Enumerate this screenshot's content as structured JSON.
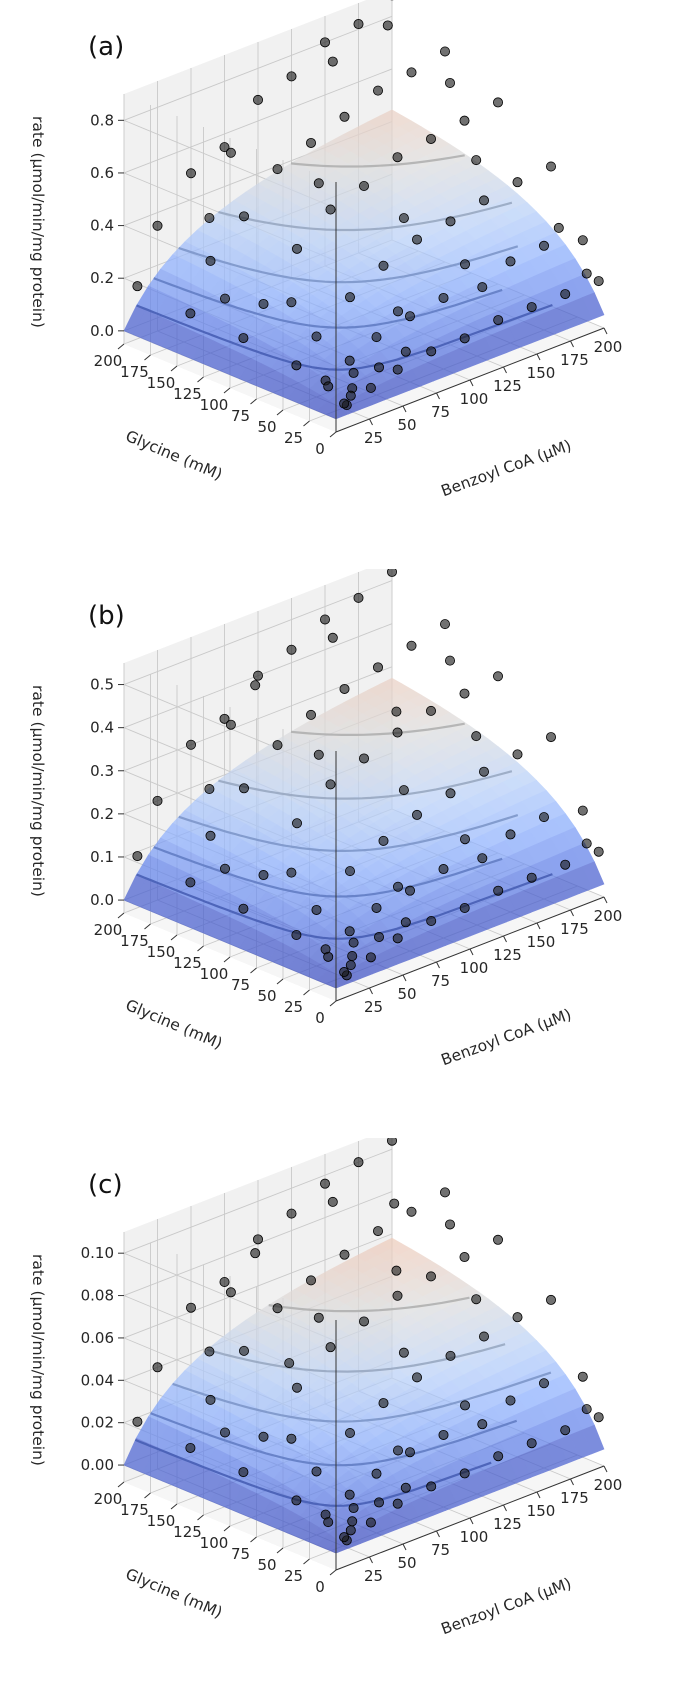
{
  "chart_data": [
    {
      "type": "surface3d-scatter",
      "panel_label": "(a)",
      "zlabel": "rate (μmol/min/mg protein)",
      "xlabel": "Benzoyl CoA (μM)",
      "ylabel": "Glycine (mM)",
      "x_ticks": [
        "25",
        "50",
        "75",
        "100",
        "125",
        "150",
        "175",
        "200"
      ],
      "y_ticks": [
        "0",
        "25",
        "50",
        "75",
        "100",
        "125",
        "150",
        "175",
        "200"
      ],
      "z_ticks": [
        "0.0",
        "0.2",
        "0.4",
        "0.6",
        "0.8"
      ],
      "xlim": [
        0,
        200
      ],
      "ylim": [
        0,
        200
      ],
      "zlim": [
        -0.05,
        0.9
      ],
      "z_tick_values": [
        0.0,
        0.2,
        0.4,
        0.6,
        0.8
      ],
      "surface": {
        "vmax": 0.78,
        "km_x": 60,
        "km_y": 70
      },
      "points": [
        [
          10,
          5,
          0.03
        ],
        [
          12,
          5,
          0.02
        ],
        [
          15,
          5,
          0.05
        ],
        [
          10,
          20,
          0.07
        ],
        [
          12,
          25,
          0.08
        ],
        [
          20,
          10,
          0.06
        ],
        [
          25,
          15,
          0.1
        ],
        [
          30,
          5,
          0.05
        ],
        [
          30,
          25,
          0.12
        ],
        [
          40,
          10,
          0.1
        ],
        [
          50,
          5,
          0.08
        ],
        [
          50,
          25,
          0.17
        ],
        [
          60,
          10,
          0.12
        ],
        [
          75,
          5,
          0.1
        ],
        [
          75,
          25,
          0.2
        ],
        [
          100,
          5,
          0.1
        ],
        [
          100,
          25,
          0.22
        ],
        [
          125,
          5,
          0.12
        ],
        [
          125,
          20,
          0.22
        ],
        [
          150,
          5,
          0.12
        ],
        [
          150,
          25,
          0.26
        ],
        [
          175,
          5,
          0.12
        ],
        [
          175,
          25,
          0.27
        ],
        [
          200,
          5,
          0.12
        ],
        [
          200,
          20,
          0.25
        ],
        [
          195,
          10,
          0.15
        ],
        [
          190,
          30,
          0.3
        ],
        [
          10,
          50,
          0.1
        ],
        [
          25,
          50,
          0.18
        ],
        [
          50,
          50,
          0.28
        ],
        [
          75,
          50,
          0.35
        ],
        [
          100,
          50,
          0.4
        ],
        [
          125,
          50,
          0.42
        ],
        [
          150,
          50,
          0.45
        ],
        [
          175,
          50,
          0.47
        ],
        [
          200,
          50,
          0.48
        ],
        [
          10,
          100,
          0.12
        ],
        [
          25,
          100,
          0.22
        ],
        [
          50,
          100,
          0.38
        ],
        [
          75,
          100,
          0.48
        ],
        [
          100,
          100,
          0.52
        ],
        [
          125,
          100,
          0.58
        ],
        [
          150,
          100,
          0.6
        ],
        [
          175,
          100,
          0.62
        ],
        [
          200,
          100,
          0.64
        ],
        [
          10,
          150,
          0.13
        ],
        [
          25,
          150,
          0.3
        ],
        [
          50,
          150,
          0.42
        ],
        [
          75,
          150,
          0.55
        ],
        [
          100,
          150,
          0.6
        ],
        [
          125,
          150,
          0.65
        ],
        [
          150,
          150,
          0.7
        ],
        [
          175,
          150,
          0.72
        ],
        [
          200,
          150,
          0.75
        ],
        [
          10,
          200,
          0.15
        ],
        [
          25,
          200,
          0.35
        ],
        [
          50,
          200,
          0.5
        ],
        [
          75,
          200,
          0.55
        ],
        [
          100,
          200,
          0.68
        ],
        [
          125,
          200,
          0.72
        ],
        [
          150,
          200,
          0.8
        ],
        [
          175,
          200,
          0.82
        ],
        [
          200,
          200,
          0.88
        ],
        [
          60,
          175,
          0.6
        ],
        [
          140,
          180,
          0.78
        ],
        [
          180,
          120,
          0.72
        ],
        [
          90,
          130,
          0.5
        ],
        [
          30,
          80,
          0.25
        ],
        [
          160,
          70,
          0.55
        ],
        [
          120,
          30,
          0.3
        ],
        [
          40,
          170,
          0.4
        ],
        [
          185,
          185,
          0.82
        ],
        [
          110,
          75,
          0.42
        ],
        [
          70,
          30,
          0.22
        ],
        [
          20,
          130,
          0.2
        ]
      ]
    },
    {
      "type": "surface3d-scatter",
      "panel_label": "(b)",
      "zlabel": "rate (μmol/min/mg protein)",
      "xlabel": "Benzoyl CoA (μM)",
      "ylabel": "Glycine (mM)",
      "x_ticks": [
        "25",
        "50",
        "75",
        "100",
        "125",
        "150",
        "175",
        "200"
      ],
      "y_ticks": [
        "0",
        "25",
        "50",
        "75",
        "100",
        "125",
        "150",
        "175",
        "200"
      ],
      "z_ticks": [
        "0.0",
        "0.1",
        "0.2",
        "0.3",
        "0.4",
        "0.5"
      ],
      "xlim": [
        0,
        200
      ],
      "ylim": [
        0,
        200
      ],
      "zlim": [
        -0.03,
        0.55
      ],
      "z_tick_values": [
        0.0,
        0.1,
        0.2,
        0.3,
        0.4,
        0.5
      ],
      "surface": {
        "vmax": 0.48,
        "km_x": 60,
        "km_y": 70
      },
      "points": [
        [
          10,
          5,
          0.02
        ],
        [
          12,
          5,
          0.01
        ],
        [
          15,
          5,
          0.03
        ],
        [
          10,
          20,
          0.04
        ],
        [
          12,
          25,
          0.05
        ],
        [
          20,
          10,
          0.04
        ],
        [
          25,
          15,
          0.06
        ],
        [
          30,
          5,
          0.03
        ],
        [
          30,
          25,
          0.07
        ],
        [
          40,
          10,
          0.06
        ],
        [
          50,
          5,
          0.05
        ],
        [
          50,
          25,
          0.1
        ],
        [
          60,
          10,
          0.07
        ],
        [
          75,
          5,
          0.06
        ],
        [
          75,
          25,
          0.11
        ],
        [
          100,
          5,
          0.06
        ],
        [
          100,
          25,
          0.13
        ],
        [
          125,
          5,
          0.07
        ],
        [
          125,
          20,
          0.13
        ],
        [
          150,
          5,
          0.07
        ],
        [
          150,
          25,
          0.15
        ],
        [
          175,
          5,
          0.07
        ],
        [
          175,
          25,
          0.16
        ],
        [
          200,
          5,
          0.07
        ],
        [
          200,
          20,
          0.15
        ],
        [
          195,
          10,
          0.09
        ],
        [
          10,
          50,
          0.06
        ],
        [
          25,
          50,
          0.1
        ],
        [
          50,
          50,
          0.16
        ],
        [
          75,
          50,
          0.2
        ],
        [
          100,
          50,
          0.23
        ],
        [
          125,
          50,
          0.25
        ],
        [
          150,
          50,
          0.27
        ],
        [
          175,
          50,
          0.28
        ],
        [
          200,
          50,
          0.29
        ],
        [
          10,
          100,
          0.07
        ],
        [
          25,
          100,
          0.13
        ],
        [
          50,
          100,
          0.22
        ],
        [
          75,
          100,
          0.28
        ],
        [
          100,
          100,
          0.31
        ],
        [
          125,
          100,
          0.34
        ],
        [
          150,
          100,
          0.36
        ],
        [
          175,
          100,
          0.37
        ],
        [
          200,
          100,
          0.38
        ],
        [
          10,
          150,
          0.08
        ],
        [
          25,
          150,
          0.17
        ],
        [
          50,
          150,
          0.25
        ],
        [
          75,
          150,
          0.32
        ],
        [
          100,
          150,
          0.36
        ],
        [
          125,
          150,
          0.39
        ],
        [
          150,
          150,
          0.41
        ],
        [
          175,
          150,
          0.43
        ],
        [
          200,
          150,
          0.45
        ],
        [
          10,
          200,
          0.09
        ],
        [
          25,
          200,
          0.2
        ],
        [
          50,
          200,
          0.3
        ],
        [
          75,
          200,
          0.33
        ],
        [
          100,
          200,
          0.4
        ],
        [
          125,
          200,
          0.43
        ],
        [
          150,
          200,
          0.47
        ],
        [
          175,
          200,
          0.49
        ],
        [
          200,
          200,
          0.52
        ],
        [
          60,
          175,
          0.36
        ],
        [
          140,
          180,
          0.46
        ],
        [
          180,
          120,
          0.42
        ],
        [
          90,
          130,
          0.3
        ],
        [
          30,
          80,
          0.15
        ],
        [
          160,
          70,
          0.32
        ],
        [
          120,
          30,
          0.17
        ],
        [
          40,
          170,
          0.24
        ],
        [
          110,
          75,
          0.25
        ],
        [
          70,
          30,
          0.12
        ],
        [
          20,
          130,
          0.12
        ],
        [
          140,
          120,
          0.35
        ],
        [
          90,
          190,
          0.4
        ]
      ]
    },
    {
      "type": "surface3d-scatter",
      "panel_label": "(c)",
      "zlabel": "rate (μmol/min/mg protein)",
      "xlabel": "Benzoyl CoA (μM)",
      "ylabel": "Glycine (mM)",
      "x_ticks": [
        "25",
        "50",
        "75",
        "100",
        "125",
        "150",
        "175",
        "200"
      ],
      "y_ticks": [
        "0",
        "25",
        "50",
        "75",
        "100",
        "125",
        "150",
        "175",
        "200"
      ],
      "z_ticks": [
        "0.00",
        "0.02",
        "0.04",
        "0.06",
        "0.08",
        "0.10"
      ],
      "xlim": [
        0,
        200
      ],
      "ylim": [
        0,
        200
      ],
      "zlim": [
        -0.008,
        0.11
      ],
      "z_tick_values": [
        0.0,
        0.02,
        0.04,
        0.06,
        0.08,
        0.1
      ],
      "surface": {
        "vmax": 0.098,
        "km_x": 55,
        "km_y": 65
      },
      "points": [
        [
          10,
          5,
          0.004
        ],
        [
          12,
          5,
          0.002
        ],
        [
          15,
          5,
          0.006
        ],
        [
          10,
          20,
          0.008
        ],
        [
          12,
          25,
          0.01
        ],
        [
          20,
          10,
          0.008
        ],
        [
          25,
          15,
          0.012
        ],
        [
          30,
          5,
          0.006
        ],
        [
          30,
          25,
          0.015
        ],
        [
          40,
          10,
          0.012
        ],
        [
          50,
          5,
          0.01
        ],
        [
          50,
          25,
          0.02
        ],
        [
          60,
          10,
          0.014
        ],
        [
          75,
          5,
          0.012
        ],
        [
          75,
          25,
          0.024
        ],
        [
          100,
          5,
          0.012
        ],
        [
          100,
          25,
          0.026
        ],
        [
          125,
          5,
          0.014
        ],
        [
          125,
          20,
          0.026
        ],
        [
          150,
          5,
          0.014
        ],
        [
          150,
          25,
          0.03
        ],
        [
          175,
          5,
          0.014
        ],
        [
          175,
          25,
          0.032
        ],
        [
          200,
          5,
          0.014
        ],
        [
          200,
          20,
          0.03
        ],
        [
          195,
          10,
          0.018
        ],
        [
          10,
          50,
          0.012
        ],
        [
          25,
          50,
          0.022
        ],
        [
          50,
          50,
          0.034
        ],
        [
          75,
          50,
          0.042
        ],
        [
          100,
          50,
          0.048
        ],
        [
          125,
          50,
          0.052
        ],
        [
          150,
          50,
          0.055
        ],
        [
          175,
          50,
          0.058
        ],
        [
          200,
          50,
          0.06
        ],
        [
          10,
          100,
          0.015
        ],
        [
          25,
          100,
          0.028
        ],
        [
          50,
          100,
          0.045
        ],
        [
          75,
          100,
          0.058
        ],
        [
          100,
          100,
          0.064
        ],
        [
          125,
          100,
          0.07
        ],
        [
          150,
          100,
          0.073
        ],
        [
          175,
          100,
          0.076
        ],
        [
          200,
          100,
          0.078
        ],
        [
          10,
          150,
          0.016
        ],
        [
          25,
          150,
          0.035
        ],
        [
          50,
          150,
          0.052
        ],
        [
          75,
          150,
          0.066
        ],
        [
          100,
          150,
          0.073
        ],
        [
          125,
          150,
          0.079
        ],
        [
          150,
          150,
          0.084
        ],
        [
          175,
          150,
          0.087
        ],
        [
          200,
          150,
          0.09
        ],
        [
          10,
          200,
          0.018
        ],
        [
          25,
          200,
          0.04
        ],
        [
          50,
          200,
          0.062
        ],
        [
          75,
          200,
          0.068
        ],
        [
          100,
          200,
          0.082
        ],
        [
          125,
          200,
          0.088
        ],
        [
          150,
          200,
          0.096
        ],
        [
          175,
          200,
          0.1
        ],
        [
          200,
          200,
          0.104
        ],
        [
          60,
          175,
          0.072
        ],
        [
          140,
          180,
          0.094
        ],
        [
          180,
          120,
          0.086
        ],
        [
          90,
          130,
          0.062
        ],
        [
          30,
          80,
          0.03
        ],
        [
          160,
          70,
          0.066
        ],
        [
          120,
          30,
          0.034
        ],
        [
          40,
          170,
          0.05
        ],
        [
          110,
          75,
          0.052
        ],
        [
          70,
          30,
          0.025
        ],
        [
          20,
          130,
          0.025
        ],
        [
          140,
          120,
          0.074
        ],
        [
          90,
          190,
          0.08
        ],
        [
          60,
          120,
          0.05
        ],
        [
          170,
          160,
          0.09
        ]
      ]
    }
  ]
}
